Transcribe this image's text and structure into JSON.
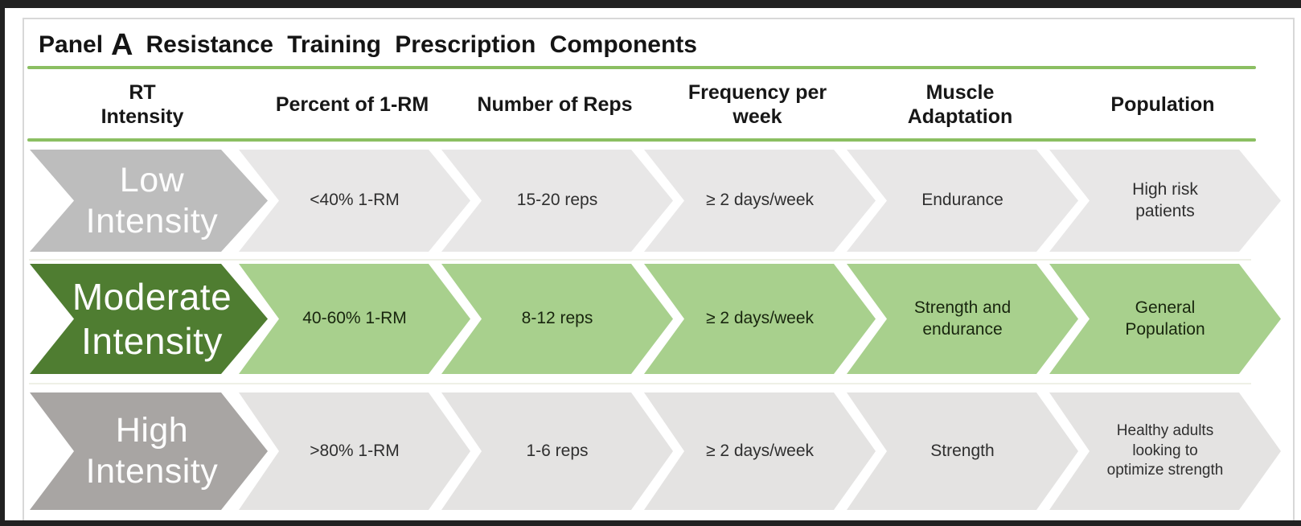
{
  "panel": {
    "label_prefix": "Panel",
    "label_letter": "A",
    "title": "Resistance Training Prescription Components"
  },
  "table": {
    "headers": [
      "RT Intensity",
      "Percent of 1-RM",
      "Number of Reps",
      "Frequency per week",
      "Muscle Adaptation",
      "Population"
    ],
    "rows": [
      {
        "intensity": "Low Intensity",
        "cells": [
          "<40% 1-RM",
          "15-20 reps",
          "≥ 2 days/week",
          "Endurance",
          "High risk patients"
        ]
      },
      {
        "intensity": "Moderate Intensity",
        "cells": [
          "40-60% 1-RM",
          "8-12 reps",
          "≥ 2 days/week",
          "Strength and endurance",
          "General Population"
        ]
      },
      {
        "intensity": "High Intensity",
        "cells": [
          ">80% 1-RM",
          "1-6 reps",
          "≥ 2 days/week",
          "Strength",
          "Healthy adults looking to optimize strength"
        ]
      }
    ]
  },
  "colors": {
    "frame": "#222222",
    "panel_border": "#d8d8d8",
    "divider_green": "#8bbf62",
    "row_separator": "#eef0e6",
    "low_lead": "#bdbdbd",
    "low_segment": "#e8e7e7",
    "moderate_lead": "#4f7d31",
    "moderate_segment": "#a8d08d",
    "high_lead": "#a8a5a3",
    "high_segment": "#e4e3e2",
    "lead_text": "#fdfdfd",
    "cell_text": "#2f2f2f",
    "title_text": "#141414"
  }
}
